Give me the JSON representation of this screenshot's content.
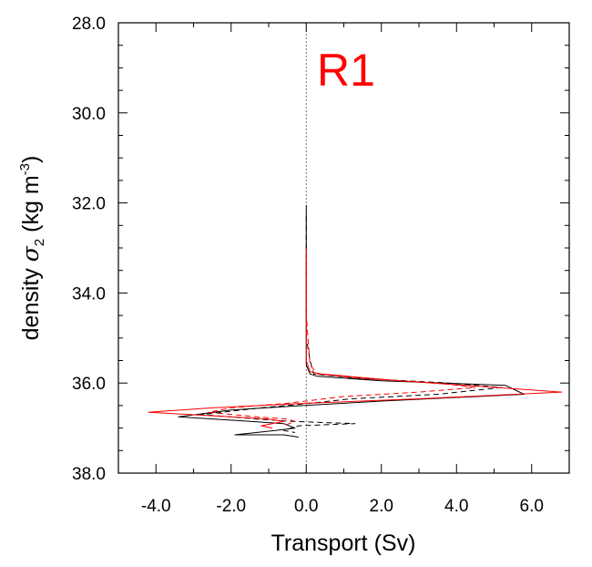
{
  "chart_data": {
    "type": "line",
    "panel_label": "R1",
    "panel_label_color": "#ff0000",
    "xlabel": "Transport (Sv)",
    "ylabel": {
      "prefix": "density",
      "symbol": "σ",
      "subscript": "2",
      "units_open": "(kg m",
      "units_exp": "-3",
      "units_close": ")"
    },
    "xlim": [
      -5.0,
      7.0
    ],
    "ylim": [
      28.0,
      38.0
    ],
    "y_inverted": true,
    "xticks": [
      -4.0,
      -2.0,
      0.0,
      2.0,
      4.0,
      6.0
    ],
    "xtick_labels": [
      "-4.0",
      "-2.0",
      "0.0",
      "2.0",
      "4.0",
      "6.0"
    ],
    "yticks": [
      28.0,
      30.0,
      32.0,
      34.0,
      36.0,
      38.0
    ],
    "ytick_labels": [
      "28.0",
      "30.0",
      "32.0",
      "34.0",
      "36.0",
      "38.0"
    ],
    "x_minor_step": 1.0,
    "y_minor_step": 0.5,
    "zero_line": true,
    "grid": false,
    "series": [
      {
        "color": "#000000",
        "dash": "solid",
        "x": [
          0.0,
          0.0,
          0.0,
          0.0,
          0.0,
          0.1,
          0.3,
          2.0,
          5.3,
          5.8,
          2.0,
          -0.1,
          -2.0,
          -3.4,
          -1.5,
          -0.6,
          -0.3,
          -0.8,
          -1.9,
          -0.6,
          -0.2
        ],
        "y": [
          32.05,
          33.0,
          34.0,
          35.2,
          35.6,
          35.8,
          35.85,
          35.95,
          36.05,
          36.25,
          36.4,
          36.5,
          36.6,
          36.75,
          36.85,
          36.9,
          37.0,
          37.05,
          37.15,
          37.15,
          37.2
        ]
      },
      {
        "color": "#000000",
        "dash": "dashed",
        "x": [
          0.0,
          0.0,
          0.0,
          0.1,
          0.2,
          1.5,
          3.8,
          5.2,
          3.5,
          1.2,
          0.1,
          -1.2,
          -2.8,
          -1.3,
          -0.4,
          0.6,
          1.3,
          -0.2,
          -0.6,
          -0.3
        ],
        "y": [
          32.3,
          33.5,
          35.0,
          35.5,
          35.8,
          35.9,
          36.0,
          36.1,
          36.25,
          36.35,
          36.45,
          36.55,
          36.7,
          36.8,
          36.85,
          36.88,
          36.9,
          36.95,
          37.05,
          37.1
        ]
      },
      {
        "color": "#ff0000",
        "dash": "solid",
        "x": [
          0.0,
          0.0,
          0.0,
          0.0,
          0.1,
          0.4,
          2.5,
          6.8,
          3.0,
          0.0,
          -2.5,
          -4.2,
          -2.0,
          -1.0,
          -0.6,
          -1.2,
          -0.9
        ],
        "y": [
          33.0,
          34.0,
          35.0,
          35.5,
          35.75,
          35.8,
          35.95,
          36.2,
          36.35,
          36.45,
          36.55,
          36.65,
          36.75,
          36.8,
          36.85,
          36.95,
          37.0
        ]
      },
      {
        "color": "#ff0000",
        "dash": "dashed",
        "x": [
          0.0,
          0.0,
          0.1,
          0.3,
          1.5,
          3.5,
          4.5,
          3.0,
          1.0,
          -0.5,
          -2.0,
          -2.6,
          -1.3,
          -0.5,
          -0.3,
          -0.6
        ],
        "y": [
          33.2,
          34.5,
          35.6,
          35.8,
          35.9,
          36.0,
          36.1,
          36.2,
          36.3,
          36.45,
          36.55,
          36.65,
          36.75,
          36.8,
          36.85,
          36.95
        ]
      }
    ]
  }
}
